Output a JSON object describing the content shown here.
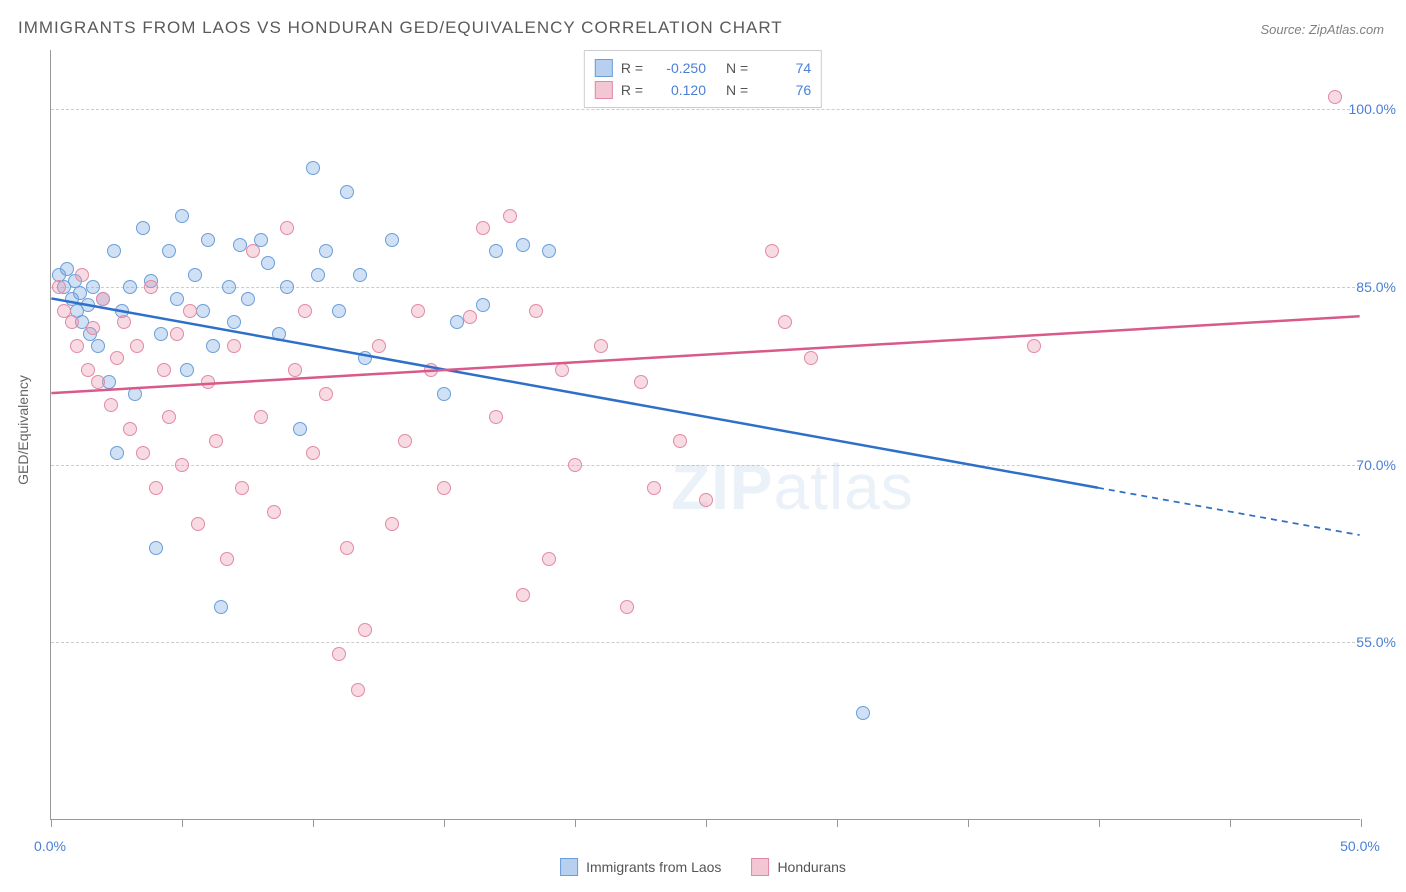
{
  "title": "IMMIGRANTS FROM LAOS VS HONDURAN GED/EQUIVALENCY CORRELATION CHART",
  "source": "Source: ZipAtlas.com",
  "watermark_bold": "ZIP",
  "watermark_rest": "atlas",
  "y_axis_label": "GED/Equivalency",
  "chart": {
    "type": "scatter",
    "xlim": [
      0,
      50
    ],
    "ylim": [
      40,
      105
    ],
    "x_ticks": [
      0,
      5,
      10,
      15,
      20,
      25,
      30,
      35,
      40,
      45,
      50
    ],
    "x_tick_labels": {
      "0": "0.0%",
      "50": "50.0%"
    },
    "y_gridlines": [
      55,
      70,
      85,
      100
    ],
    "y_tick_labels": [
      "55.0%",
      "70.0%",
      "85.0%",
      "100.0%"
    ],
    "background_color": "#ffffff",
    "grid_color": "#cccccc",
    "series": [
      {
        "name": "Immigrants from Laos",
        "short": "laos",
        "color_fill": "rgba(120,165,225,0.35)",
        "color_stroke": "#6a9fd8",
        "legend_fill": "#b8d0ef",
        "legend_stroke": "#6a9fd8",
        "R": "-0.250",
        "N": "74",
        "trend": {
          "x1": 0,
          "y1": 84,
          "x2": 40,
          "y2": 68,
          "x2_ext": 50,
          "y2_ext": 64,
          "color": "#2e6fc9",
          "width": 2.5
        },
        "points": [
          [
            0.3,
            86
          ],
          [
            0.5,
            85
          ],
          [
            0.6,
            86.5
          ],
          [
            0.8,
            84
          ],
          [
            0.9,
            85.5
          ],
          [
            1.0,
            83
          ],
          [
            1.1,
            84.5
          ],
          [
            1.2,
            82
          ],
          [
            1.4,
            83.5
          ],
          [
            1.5,
            81
          ],
          [
            1.6,
            85
          ],
          [
            1.8,
            80
          ],
          [
            2.0,
            84
          ],
          [
            2.2,
            77
          ],
          [
            2.4,
            88
          ],
          [
            2.5,
            71
          ],
          [
            2.7,
            83
          ],
          [
            3.0,
            85
          ],
          [
            3.2,
            76
          ],
          [
            3.5,
            90
          ],
          [
            3.8,
            85.5
          ],
          [
            4.0,
            63
          ],
          [
            4.2,
            81
          ],
          [
            4.5,
            88
          ],
          [
            4.8,
            84
          ],
          [
            5.0,
            91
          ],
          [
            5.2,
            78
          ],
          [
            5.5,
            86
          ],
          [
            5.8,
            83
          ],
          [
            6.0,
            89
          ],
          [
            6.2,
            80
          ],
          [
            6.5,
            58
          ],
          [
            6.8,
            85
          ],
          [
            7.0,
            82
          ],
          [
            7.2,
            88.5
          ],
          [
            7.5,
            84
          ],
          [
            8.0,
            89
          ],
          [
            8.3,
            87
          ],
          [
            8.7,
            81
          ],
          [
            9.0,
            85
          ],
          [
            9.5,
            73
          ],
          [
            10.0,
            95
          ],
          [
            10.2,
            86
          ],
          [
            10.5,
            88
          ],
          [
            11.0,
            83
          ],
          [
            11.3,
            93
          ],
          [
            11.8,
            86
          ],
          [
            12.0,
            79
          ],
          [
            13.0,
            89
          ],
          [
            15.0,
            76
          ],
          [
            15.5,
            82
          ],
          [
            16.5,
            83.5
          ],
          [
            17.0,
            88
          ],
          [
            18.0,
            88.5
          ],
          [
            19.0,
            88
          ],
          [
            31.0,
            49
          ]
        ]
      },
      {
        "name": "Hondurans",
        "short": "hondurans",
        "color_fill": "rgba(235,150,175,0.35)",
        "color_stroke": "#e28aa5",
        "legend_fill": "#f3c6d3",
        "legend_stroke": "#e28aa5",
        "R": "0.120",
        "N": "76",
        "trend": {
          "x1": 0,
          "y1": 76,
          "x2": 50,
          "y2": 82.5,
          "color": "#d85a8a",
          "width": 2.5
        },
        "points": [
          [
            0.3,
            85
          ],
          [
            0.5,
            83
          ],
          [
            0.8,
            82
          ],
          [
            1.0,
            80
          ],
          [
            1.2,
            86
          ],
          [
            1.4,
            78
          ],
          [
            1.6,
            81.5
          ],
          [
            1.8,
            77
          ],
          [
            2.0,
            84
          ],
          [
            2.3,
            75
          ],
          [
            2.5,
            79
          ],
          [
            2.8,
            82
          ],
          [
            3.0,
            73
          ],
          [
            3.3,
            80
          ],
          [
            3.5,
            71
          ],
          [
            3.8,
            85
          ],
          [
            4.0,
            68
          ],
          [
            4.3,
            78
          ],
          [
            4.5,
            74
          ],
          [
            4.8,
            81
          ],
          [
            5.0,
            70
          ],
          [
            5.3,
            83
          ],
          [
            5.6,
            65
          ],
          [
            6.0,
            77
          ],
          [
            6.3,
            72
          ],
          [
            6.7,
            62
          ],
          [
            7.0,
            80
          ],
          [
            7.3,
            68
          ],
          [
            7.7,
            88
          ],
          [
            8.0,
            74
          ],
          [
            8.5,
            66
          ],
          [
            9.0,
            90
          ],
          [
            9.3,
            78
          ],
          [
            9.7,
            83
          ],
          [
            10.0,
            71
          ],
          [
            10.5,
            76
          ],
          [
            11.0,
            54
          ],
          [
            11.3,
            63
          ],
          [
            11.7,
            51
          ],
          [
            12.0,
            56
          ],
          [
            12.5,
            80
          ],
          [
            13.0,
            65
          ],
          [
            13.5,
            72
          ],
          [
            14.0,
            83
          ],
          [
            14.5,
            78
          ],
          [
            15.0,
            68
          ],
          [
            16.0,
            82.5
          ],
          [
            16.5,
            90
          ],
          [
            17.0,
            74
          ],
          [
            17.5,
            91
          ],
          [
            18.0,
            59
          ],
          [
            18.5,
            83
          ],
          [
            19.0,
            62
          ],
          [
            19.5,
            78
          ],
          [
            20.0,
            70
          ],
          [
            21.0,
            80
          ],
          [
            22.0,
            58
          ],
          [
            22.5,
            77
          ],
          [
            23.0,
            68
          ],
          [
            24.0,
            72
          ],
          [
            25.0,
            67
          ],
          [
            27.5,
            88
          ],
          [
            28.0,
            82
          ],
          [
            29.0,
            79
          ],
          [
            37.5,
            80
          ],
          [
            49.0,
            101
          ]
        ]
      }
    ]
  },
  "legend_top": {
    "R_label": "R =",
    "N_label": "N ="
  },
  "legend_bottom": [
    {
      "label": "Immigrants from Laos",
      "fill": "#b8d0ef",
      "stroke": "#6a9fd8"
    },
    {
      "label": "Hondurans",
      "fill": "#f3c6d3",
      "stroke": "#e28aa5"
    }
  ]
}
